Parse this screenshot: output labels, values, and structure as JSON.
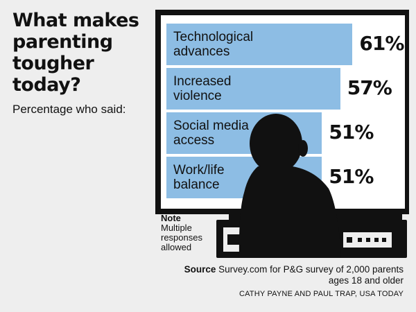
{
  "title": "What makes\nparenting\ntougher\ntoday?",
  "subtitle": "Percentage who said:",
  "colors": {
    "bar": "#8dbde4",
    "frame": "#111111",
    "silhouette": "#111111"
  },
  "chart_data": {
    "type": "bar",
    "orientation": "horizontal",
    "categories": [
      "Technological\nadvances",
      "Increased\nviolence",
      "Social media\naccess",
      "Work/life\nbalance"
    ],
    "values": [
      61,
      57,
      51,
      51
    ],
    "value_labels": [
      "61%",
      "57%",
      "51%",
      "51%"
    ],
    "ylim": [
      0,
      100
    ]
  },
  "note": {
    "heading": "Note",
    "text": "Multiple\nresponses\nallowed"
  },
  "source": {
    "label": "Source",
    "text": "Survey.com for P&G survey of 2,000 parents\nages 18 and older"
  },
  "credit": "CATHY PAYNE AND PAUL TRAP, USA TODAY"
}
